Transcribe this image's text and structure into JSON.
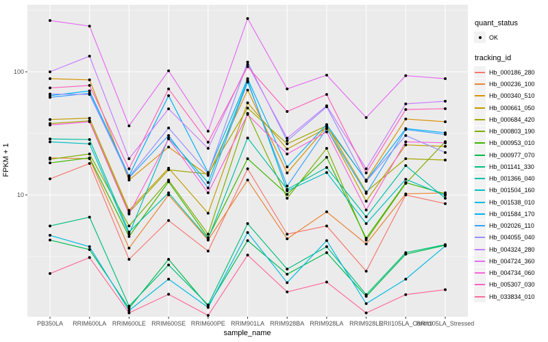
{
  "plot": {
    "panel_bg": "#EBEBEB",
    "grid_color": "#FFFFFF",
    "tick_color": "#333333",
    "tick_label_color": "#4D4D4D",
    "point_color": "#000000"
  },
  "axes": {
    "x_label": "sample_name",
    "y_label": "FPKM + 1",
    "y_scale": "log10",
    "y_major_ticks": [
      10,
      100
    ],
    "y_minor_gridlines": [
      3.162,
      31.62,
      316.2
    ]
  },
  "legend": {
    "quant_status_title": "quant_status",
    "quant_status_items": [
      {
        "label": "OK",
        "marker": "point"
      }
    ],
    "tracking_id_title": "tracking_id"
  },
  "chart_data": {
    "type": "line",
    "title": "",
    "xlabel": "sample_name",
    "ylabel": "FPKM + 1",
    "y_scale": "log10",
    "ylim": [
      1.03,
      350
    ],
    "grid": true,
    "legend_position": "right",
    "x_categories": [
      "PB350LA",
      "RRIM600LA",
      "RRIM600LE",
      "RRIM600SE",
      "RRIM600PE",
      "RRIM901LA",
      "RRIM928BA",
      "RRIM928LA",
      "RRIM928LE",
      "RRII105LA_Control",
      "RRII105LA_Stressed"
    ],
    "series": [
      {
        "name": "Hb_000186_280",
        "color": "#F8766D",
        "values": [
          13.5,
          18,
          3.0,
          6.2,
          3.5,
          16.3,
          4.8,
          5.6,
          2.4,
          10.0,
          8.5
        ]
      },
      {
        "name": "Hb_000236_100",
        "color": "#EA8331",
        "values": [
          20,
          19.7,
          3.7,
          10.0,
          4.3,
          13.2,
          4.4,
          7.3,
          4.0,
          10.2,
          10.4
        ]
      },
      {
        "name": "Hb_000340_510",
        "color": "#D89000",
        "values": [
          88,
          86,
          13.2,
          24.5,
          14.4,
          71,
          15.1,
          35.8,
          13.2,
          41.4,
          39.3
        ]
      },
      {
        "name": "Hb_000661_050",
        "color": "#C09B00",
        "values": [
          41,
          42,
          7.5,
          16.5,
          7.1,
          56,
          23.6,
          35.0,
          8.9,
          25.5,
          24.8
        ]
      },
      {
        "name": "Hb_000684_420",
        "color": "#A3A500",
        "values": [
          38,
          40,
          7.2,
          16.0,
          14.8,
          50.8,
          26.0,
          36.5,
          10.6,
          19.7,
          19.2
        ]
      },
      {
        "name": "Hb_000803_190",
        "color": "#7CAE00",
        "values": [
          19.5,
          21.5,
          5.6,
          13.2,
          4.8,
          46,
          9.4,
          23.9,
          4.3,
          12.4,
          27.1
        ]
      },
      {
        "name": "Hb_000953_010",
        "color": "#39B600",
        "values": [
          18.2,
          20,
          4.6,
          12.8,
          4.5,
          19.7,
          10.1,
          20.2,
          4.45,
          12.6,
          10.2
        ]
      },
      {
        "name": "Hb_000977_070",
        "color": "#00BB4E",
        "values": [
          4.3,
          3.6,
          1.2,
          3.0,
          1.25,
          4.26,
          2.27,
          3.4,
          1.5,
          3.3,
          3.9
        ]
      },
      {
        "name": "Hb_001141_330",
        "color": "#00BF7D",
        "values": [
          5.6,
          6.6,
          1.25,
          2.7,
          1.28,
          5.85,
          2.5,
          3.8,
          1.55,
          3.4,
          3.95
        ]
      },
      {
        "name": "Hb_001366_040",
        "color": "#00C1A3",
        "values": [
          28.5,
          28.2,
          5.0,
          10.4,
          4.4,
          29,
          11.1,
          16.7,
          6.65,
          17.3,
          9.4
        ]
      },
      {
        "name": "Hb_001504_160",
        "color": "#00BFC4",
        "values": [
          27,
          26,
          4.8,
          29,
          12.6,
          85,
          10.8,
          15.2,
          5.85,
          13.4,
          9.9
        ]
      },
      {
        "name": "Hb_001538_010",
        "color": "#00BAE0",
        "values": [
          4.7,
          3.8,
          1.15,
          2.07,
          1.22,
          4.95,
          1.94,
          4.26,
          1.31,
          2.07,
          3.85
        ]
      },
      {
        "name": "Hb_001584_170",
        "color": "#00B0F6",
        "values": [
          64,
          70,
          14.3,
          64,
          15.2,
          88,
          16.9,
          37.3,
          13.0,
          34.6,
          32
        ]
      },
      {
        "name": "Hb_002026_110",
        "color": "#35A2FF",
        "values": [
          62,
          67,
          13.8,
          30.4,
          11.4,
          82.5,
          11.8,
          34.5,
          10.3,
          34.0,
          31
        ]
      },
      {
        "name": "Hb_004055_040",
        "color": "#9590FF",
        "values": [
          66,
          65.5,
          14.0,
          35,
          15.0,
          120,
          27.5,
          52,
          12.9,
          30.4,
          22.1
        ]
      },
      {
        "name": "Hb_004324_280",
        "color": "#C77CFF",
        "values": [
          100,
          134,
          19.7,
          50,
          23.9,
          115,
          28.9,
          53,
          16.3,
          54.9,
          57.7
        ]
      },
      {
        "name": "Hb_004724_360",
        "color": "#E76BF3",
        "values": [
          261,
          235,
          36.4,
          102,
          32.9,
          271,
          72.6,
          94,
          42.5,
          93,
          88
        ]
      },
      {
        "name": "Hb_004734_060",
        "color": "#FA62DB",
        "values": [
          37,
          39.3,
          7.0,
          28.5,
          10.4,
          45,
          21.5,
          32.5,
          7.55,
          27.0,
          26.5
        ]
      },
      {
        "name": "Hb_005307_030",
        "color": "#FF62BC",
        "values": [
          74,
          77.5,
          16.3,
          72.6,
          26.8,
          110,
          47.6,
          65.5,
          15.1,
          49.4,
          50.2
        ]
      },
      {
        "name": "Hb_033834_010",
        "color": "#FF6A98",
        "values": [
          2.3,
          3.1,
          1.1,
          1.56,
          1.05,
          3.25,
          1.63,
          1.96,
          1.1,
          1.55,
          1.7
        ]
      }
    ]
  }
}
